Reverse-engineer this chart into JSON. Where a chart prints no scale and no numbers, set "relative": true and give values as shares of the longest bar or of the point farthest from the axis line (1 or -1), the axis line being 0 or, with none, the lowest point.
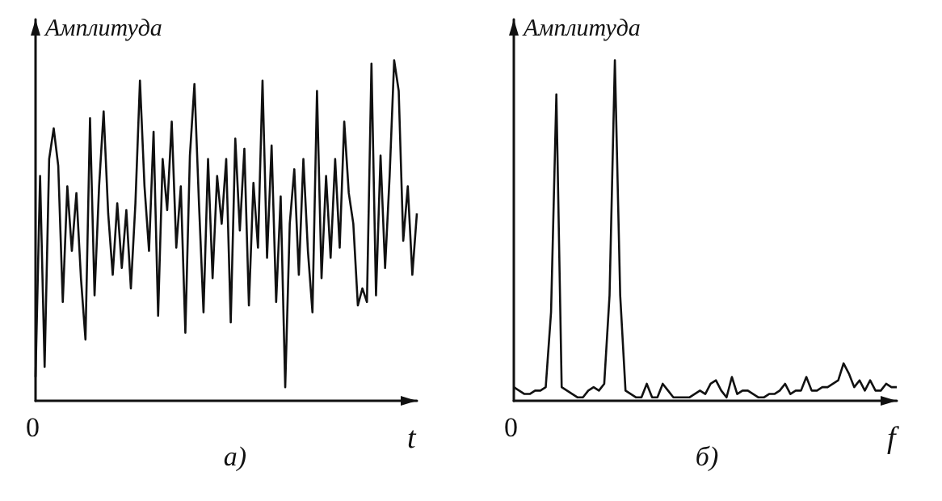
{
  "chart_data": [
    {
      "type": "line",
      "title": "а)",
      "xlabel": "t",
      "ylabel": "Амплитуда",
      "annotations": [
        "0"
      ],
      "relative": true,
      "marker": "none",
      "line_style": "solid",
      "categories": [
        null,
        null,
        null,
        null,
        null,
        null,
        null,
        null,
        null,
        null,
        null,
        null,
        null,
        null,
        null,
        null,
        null,
        null,
        null,
        null,
        null,
        null,
        null,
        null,
        null,
        null,
        null,
        null,
        null,
        null,
        null,
        null,
        null,
        null,
        null,
        null,
        null,
        null,
        null,
        null,
        null,
        null,
        null,
        null,
        null,
        null,
        null,
        null,
        null,
        null,
        null,
        null,
        null,
        null,
        null,
        null,
        null,
        null,
        null,
        null,
        null,
        null,
        null,
        null,
        null,
        null,
        null,
        null,
        null,
        null,
        null,
        null,
        null,
        null,
        null,
        null,
        null,
        null,
        null,
        null,
        null,
        null,
        null,
        null,
        null
      ],
      "series": [
        {
          "color": "#111111",
          "values": [
            0.07,
            0.66,
            0.1,
            0.71,
            0.8,
            0.69,
            0.29,
            0.63,
            0.44,
            0.61,
            0.36,
            0.18,
            0.83,
            0.31,
            0.63,
            0.85,
            0.55,
            0.37,
            0.58,
            0.39,
            0.56,
            0.33,
            0.58,
            0.94,
            0.63,
            0.44,
            0.79,
            0.25,
            0.71,
            0.56,
            0.82,
            0.45,
            0.63,
            0.2,
            0.72,
            0.93,
            0.58,
            0.26,
            0.71,
            0.36,
            0.66,
            0.52,
            0.71,
            0.23,
            0.77,
            0.5,
            0.74,
            0.28,
            0.64,
            0.45,
            0.94,
            0.42,
            0.75,
            0.29,
            0.6,
            0.04,
            0.52,
            0.68,
            0.37,
            0.71,
            0.44,
            0.26,
            0.91,
            0.36,
            0.66,
            0.42,
            0.71,
            0.45,
            0.82,
            0.61,
            0.52,
            0.28,
            0.33,
            0.29,
            0.99,
            0.31,
            0.72,
            0.39,
            0.66,
            1,
            0.91,
            0.47,
            0.63,
            0.37,
            0.55
          ]
        }
      ]
    },
    {
      "type": "line",
      "title": "б)",
      "xlabel": "f",
      "ylabel": "Амплитуда",
      "annotations": [
        "0"
      ],
      "relative": true,
      "marker": "none",
      "line_style": "solid",
      "categories": [
        null,
        null,
        null,
        null,
        null,
        null,
        null,
        null,
        null,
        null,
        null,
        null,
        null,
        null,
        null,
        null,
        null,
        null,
        null,
        null,
        null,
        null,
        null,
        null,
        null,
        null,
        null,
        null,
        null,
        null,
        null,
        null,
        null,
        null,
        null,
        null,
        null,
        null,
        null,
        null,
        null,
        null,
        null,
        null,
        null,
        null,
        null,
        null,
        null,
        null,
        null,
        null,
        null,
        null,
        null,
        null,
        null,
        null,
        null,
        null,
        null,
        null,
        null,
        null,
        null,
        null,
        null,
        null,
        null,
        null,
        null,
        null,
        null
      ],
      "series": [
        {
          "color": "#111111",
          "values": [
            0.04,
            0.03,
            0.02,
            0.02,
            0.03,
            0.03,
            0.04,
            0.26,
            0.9,
            0.04,
            0.03,
            0.02,
            0.01,
            0.01,
            0.03,
            0.04,
            0.03,
            0.05,
            0.31,
            1,
            0.31,
            0.03,
            0.02,
            0.01,
            0.01,
            0.05,
            0.01,
            0.01,
            0.05,
            0.03,
            0.01,
            0.01,
            0.01,
            0.01,
            0.02,
            0.03,
            0.02,
            0.05,
            0.06,
            0.03,
            0.01,
            0.07,
            0.02,
            0.03,
            0.03,
            0.02,
            0.01,
            0.01,
            0.02,
            0.02,
            0.03,
            0.05,
            0.02,
            0.03,
            0.03,
            0.07,
            0.03,
            0.03,
            0.04,
            0.04,
            0.05,
            0.06,
            0.11,
            0.08,
            0.04,
            0.06,
            0.03,
            0.06,
            0.03,
            0.03,
            0.05,
            0.04,
            0.04
          ]
        }
      ]
    }
  ]
}
